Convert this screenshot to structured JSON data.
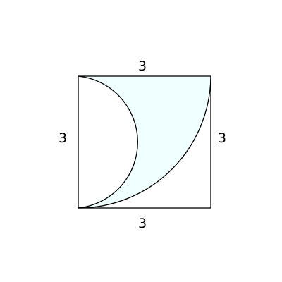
{
  "diagram": {
    "labels": {
      "top": "3",
      "left": "3",
      "right": "3",
      "bottom": "3"
    },
    "colors": {
      "stroke": "#000000",
      "shaded_fill": "#f0ffff",
      "background": "#ffffff"
    }
  }
}
